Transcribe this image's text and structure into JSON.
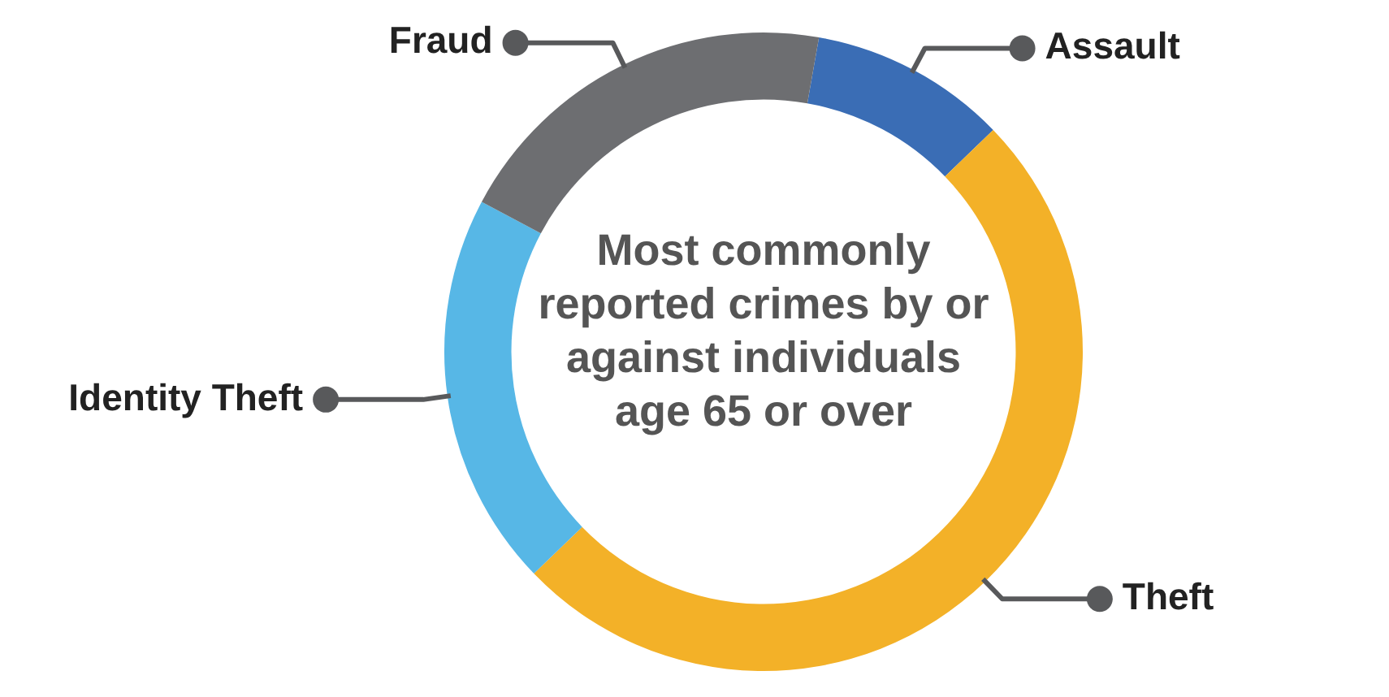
{
  "chart_data": {
    "type": "donut",
    "title": "Most commonly reported crimes by or against individuals age 65 or over",
    "categories": [
      "Assault",
      "Theft",
      "Identity Theft",
      "Fraud"
    ],
    "values": [
      10,
      50,
      20,
      20
    ],
    "colors": [
      "#3a6db5",
      "#f3b128",
      "#57b7e6",
      "#6d6e71"
    ],
    "legend": false
  }
}
